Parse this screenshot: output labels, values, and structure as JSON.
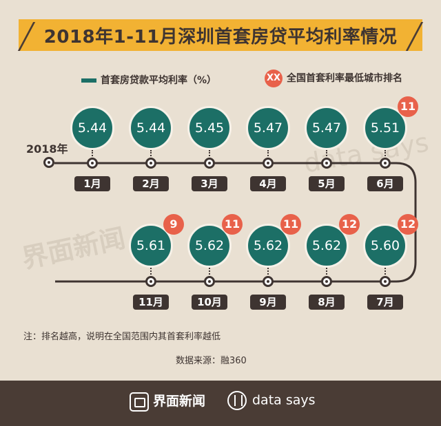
{
  "title": "2018年1-11月深圳首套房贷平均利率情况",
  "legend": {
    "rate_label": "首套房贷款平均利率（%）",
    "rank_badge": "XX",
    "rank_label": "全国首套利率最低城市排名"
  },
  "year_label": "2018年",
  "chart_data": {
    "type": "line",
    "title": "2018年1-11月深圳首套房贷平均利率情况",
    "categories": [
      "1月",
      "2月",
      "3月",
      "4月",
      "5月",
      "6月",
      "7月",
      "8月",
      "9月",
      "10月",
      "11月"
    ],
    "series": [
      {
        "name": "首套房贷款平均利率（%）",
        "values": [
          "5.44",
          "5.44",
          "5.45",
          "5.47",
          "5.47",
          "5.51",
          "5.60",
          "5.62",
          "5.62",
          "5.62",
          "5.61"
        ]
      },
      {
        "name": "全国首套利率最低城市排名",
        "values": [
          "",
          "",
          "",
          "",
          "",
          "11",
          "12",
          "12",
          "11",
          "11",
          "9"
        ]
      }
    ]
  },
  "note": "注：排名越高，说明在全国范围内其首套利率越低",
  "source": "数据来源：融360",
  "footer": {
    "brand_name": "界面新闻",
    "brand_icon": "jiemian-logo-icon",
    "data_says": "data says",
    "data_says_icon": "data-says-logo-icon"
  },
  "watermarks": [
    "界面新闻",
    "data says"
  ],
  "colors": {
    "background": "#e9e0d2",
    "title_band": "#f2b233",
    "circle": "#1c6f66",
    "rank": "#e8614a",
    "dark": "#3e3431",
    "footer": "#4a3c35"
  }
}
